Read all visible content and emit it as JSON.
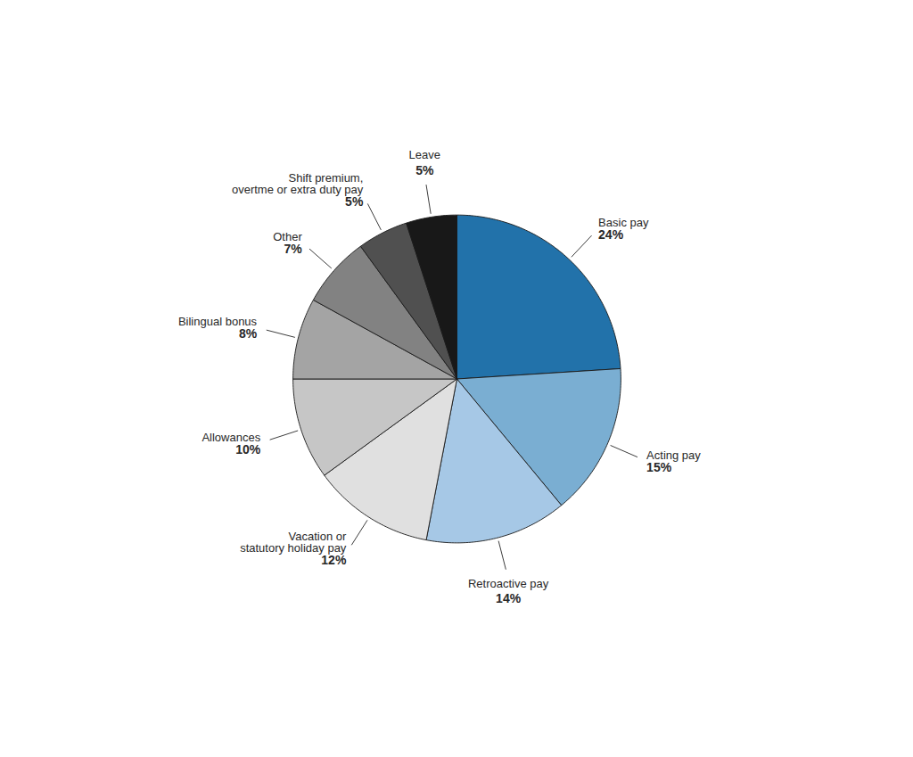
{
  "chart_data": {
    "type": "pie",
    "categories": [
      "Basic pay",
      "Acting pay",
      "Retroactive pay",
      "Vacation or\nstatutory holiday pay",
      "Allowances",
      "Bilingual bonus",
      "Other",
      "Shift premium,\novertme or extra duty pay",
      "Leave"
    ],
    "values": [
      24,
      15,
      14,
      12,
      10,
      8,
      7,
      5,
      5
    ],
    "value_labels": [
      "24%",
      "15%",
      "14%",
      "12%",
      "10%",
      "8%",
      "7%",
      "5%",
      "5%"
    ],
    "colors": [
      "#2272aa",
      "#7aaed2",
      "#a6c8e6",
      "#e0e0e0",
      "#c6c6c6",
      "#a4a4a4",
      "#828282",
      "#505050",
      "#181818"
    ],
    "data_labels": true
  }
}
